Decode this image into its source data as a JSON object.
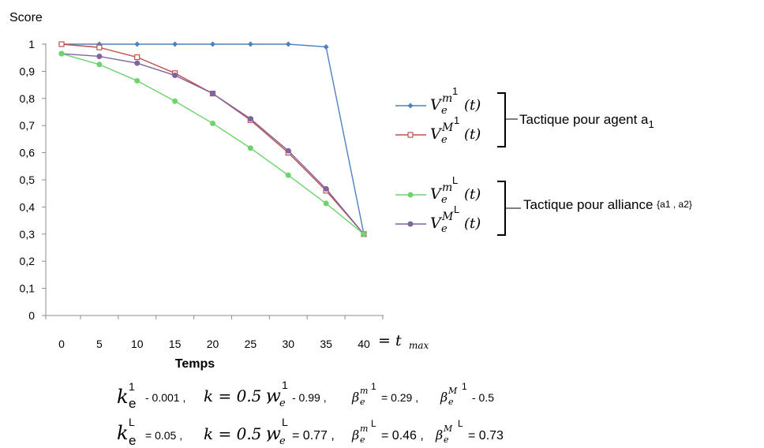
{
  "chart_data": {
    "type": "line",
    "ylabel": "Score",
    "xlabel": "Temps",
    "x": [
      0,
      5,
      10,
      15,
      20,
      25,
      30,
      35,
      40
    ],
    "x_ticks": [
      "0",
      "5",
      "10",
      "15",
      "20",
      "25",
      "30",
      "35",
      "40"
    ],
    "x_extra_label": "= t",
    "x_extra_sub": "max",
    "ylim": [
      0,
      1
    ],
    "y_ticks": [
      "0",
      "0,1",
      "0,2",
      "0,3",
      "0,4",
      "0,5",
      "0,6",
      "0,7",
      "0,8",
      "0,9",
      "1"
    ],
    "grid": false,
    "legend_position": "right",
    "series": [
      {
        "name": "V_e^{m 1}(t)",
        "color": "#4f81bd",
        "marker": "diamond",
        "values": [
          1.0,
          1.0,
          1.0,
          1.0,
          1.0,
          1.0,
          1.0,
          0.99,
          0.3
        ]
      },
      {
        "name": "V_e^{M 1}(t)",
        "color": "#c0504d",
        "marker": "square",
        "values": [
          1.0,
          0.988,
          0.952,
          0.893,
          0.818,
          0.72,
          0.6,
          0.46,
          0.3
        ]
      },
      {
        "name": "V_e^{m L}(t)",
        "color": "#6ed36e",
        "marker": "circle",
        "values": [
          0.965,
          0.925,
          0.865,
          0.79,
          0.708,
          0.617,
          0.517,
          0.413,
          0.3
        ]
      },
      {
        "name": "V_e^{M L}(t)",
        "color": "#8064a2",
        "marker": "circle",
        "values": [
          0.965,
          0.955,
          0.93,
          0.885,
          0.818,
          0.725,
          0.607,
          0.467,
          0.3
        ]
      }
    ],
    "legend": [
      {
        "base": "V",
        "sub": "e",
        "sup": "m",
        "index": "1",
        "arg": "(t)"
      },
      {
        "base": "V",
        "sub": "e",
        "sup": "M",
        "index": "1",
        "arg": "(t)"
      },
      {
        "base": "V",
        "sub": "e",
        "sup": "m",
        "index": "L",
        "arg": "(t)"
      },
      {
        "base": "V",
        "sub": "e",
        "sup": "M",
        "index": "L",
        "arg": "(t)"
      }
    ],
    "groups": [
      {
        "label": "Tactique pour agent a",
        "sub": "1"
      },
      {
        "label": "Tactique pour alliance ",
        "extra": "{a1 , a2}"
      }
    ],
    "parameters": [
      "k",
      "e",
      "1",
      "- 0.001 ,",
      "k = 0.5 ,",
      "w",
      "e",
      "1",
      "- 0.99 ,",
      "β",
      "e",
      "m",
      "1",
      "= 0.29 ,",
      "β",
      "e",
      "M",
      "1",
      "- 0.5"
    ],
    "parameters2": [
      "k",
      "e",
      "L",
      "= 0.05  ,",
      "k = 0.5 ,",
      "w",
      "e",
      "L",
      "= 0.77 ,",
      "β",
      "e",
      "m",
      "L",
      "= 0.46 ,",
      "β",
      "e",
      "M",
      "L",
      "= 0.73"
    ]
  }
}
